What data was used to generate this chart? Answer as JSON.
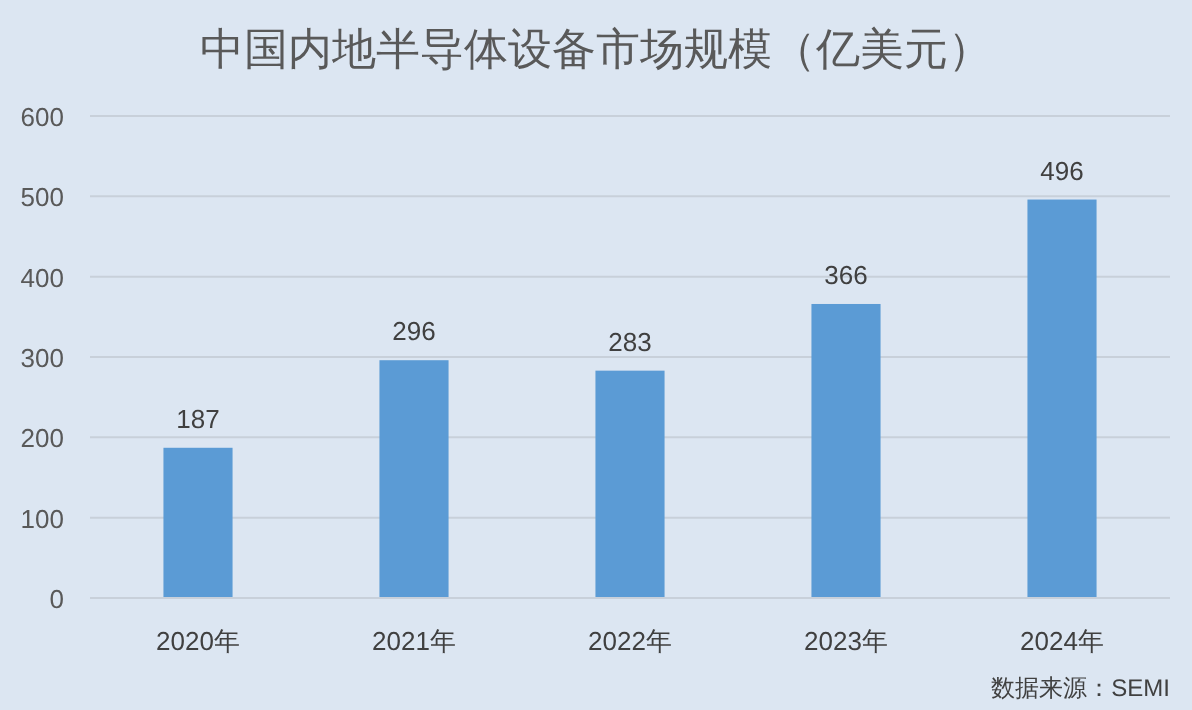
{
  "chart_data": {
    "type": "bar",
    "title": "中国内地半导体设备市场规模（亿美元）",
    "categories": [
      "2020年",
      "2021年",
      "2022年",
      "2023年",
      "2024年"
    ],
    "values": [
      187,
      296,
      283,
      366,
      496
    ],
    "color": "#5b9bd5",
    "ylim": [
      0,
      600
    ],
    "yticks": [
      0,
      100,
      200,
      300,
      400,
      500,
      600
    ],
    "grid": "y",
    "data_labels": true,
    "annotations": [
      "数据来源：SEMI"
    ]
  }
}
